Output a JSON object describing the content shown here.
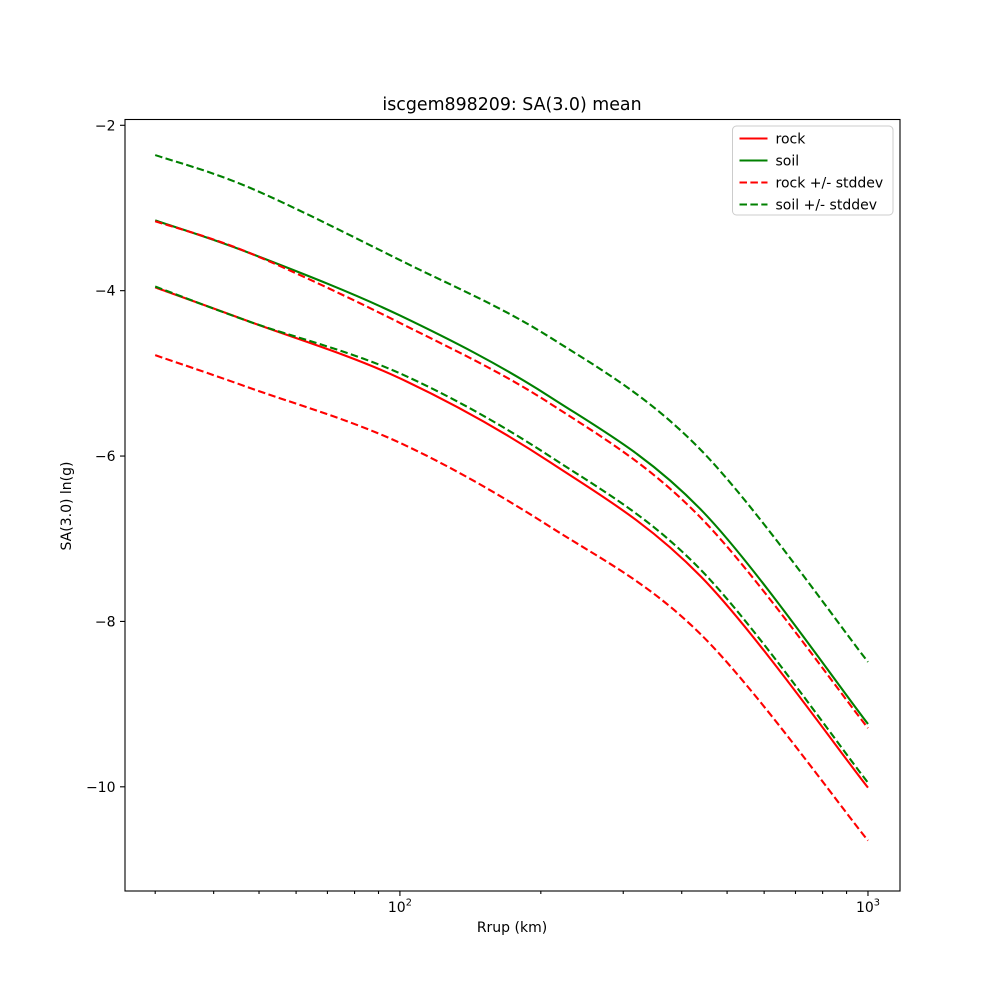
{
  "chart_data": {
    "type": "line",
    "title": "iscgem898209: SA(3.0) mean",
    "xlabel": "Rrup (km)",
    "ylabel": "SA(3.0) ln(g)",
    "x_scale": "log",
    "xlim": [
      25.86,
      1170.6
    ],
    "ylim": [
      -11.26,
      -1.93
    ],
    "grid": false,
    "x": [
      30,
      48,
      100,
      210,
      440,
      1000
    ],
    "series": [
      {
        "name": "rock",
        "color": "#ff0000",
        "style": "solid",
        "values": [
          -3.96,
          -4.38,
          -5.06,
          -6.08,
          -7.46,
          -10.01
        ]
      },
      {
        "name": "soil",
        "color": "#008000",
        "style": "solid",
        "values": [
          -3.15,
          -3.55,
          -4.3,
          -5.29,
          -6.65,
          -9.24
        ]
      },
      {
        "name": "rock + stddev",
        "color": "#ff0000",
        "style": "dashed",
        "values": [
          -3.16,
          -3.55,
          -4.39,
          -5.37,
          -6.75,
          -9.29
        ]
      },
      {
        "name": "rock - stddev",
        "color": "#ff0000",
        "style": "dashed",
        "values": [
          -4.78,
          -5.18,
          -5.84,
          -6.86,
          -8.16,
          -10.65
        ]
      },
      {
        "name": "soil + stddev",
        "color": "#008000",
        "style": "dashed",
        "values": [
          -2.36,
          -2.76,
          -3.63,
          -4.57,
          -5.93,
          -8.49
        ]
      },
      {
        "name": "soil - stddev",
        "color": "#008000",
        "style": "dashed",
        "values": [
          -3.95,
          -4.38,
          -5.0,
          -6.01,
          -7.38,
          -9.95
        ]
      }
    ],
    "y_ticks": [
      {
        "value": -2,
        "label": "−2"
      },
      {
        "value": -4,
        "label": "−4"
      },
      {
        "value": -6,
        "label": "−6"
      },
      {
        "value": -8,
        "label": "−8"
      },
      {
        "value": -10,
        "label": "−10"
      }
    ],
    "x_major_ticks": [
      {
        "value": 100,
        "base": "10",
        "exp": "2"
      },
      {
        "value": 1000,
        "base": "10",
        "exp": "3"
      }
    ],
    "x_minor_ticks": [
      30,
      40,
      50,
      60,
      70,
      80,
      90,
      200,
      300,
      400,
      500,
      600,
      700,
      800,
      900
    ],
    "legend": {
      "position": "upper right",
      "entries": [
        {
          "label": "rock",
          "color": "#ff0000",
          "style": "solid"
        },
        {
          "label": "soil",
          "color": "#008000",
          "style": "solid"
        },
        {
          "label": "rock +/- stddev",
          "color": "#ff0000",
          "style": "dashed"
        },
        {
          "label": "soil +/- stddev",
          "color": "#008000",
          "style": "dashed"
        }
      ]
    },
    "colors": {
      "rock": "#ff0000",
      "soil": "#008000",
      "spine": "#000000",
      "legend_border": "#cccccc",
      "background": "#ffffff"
    }
  }
}
